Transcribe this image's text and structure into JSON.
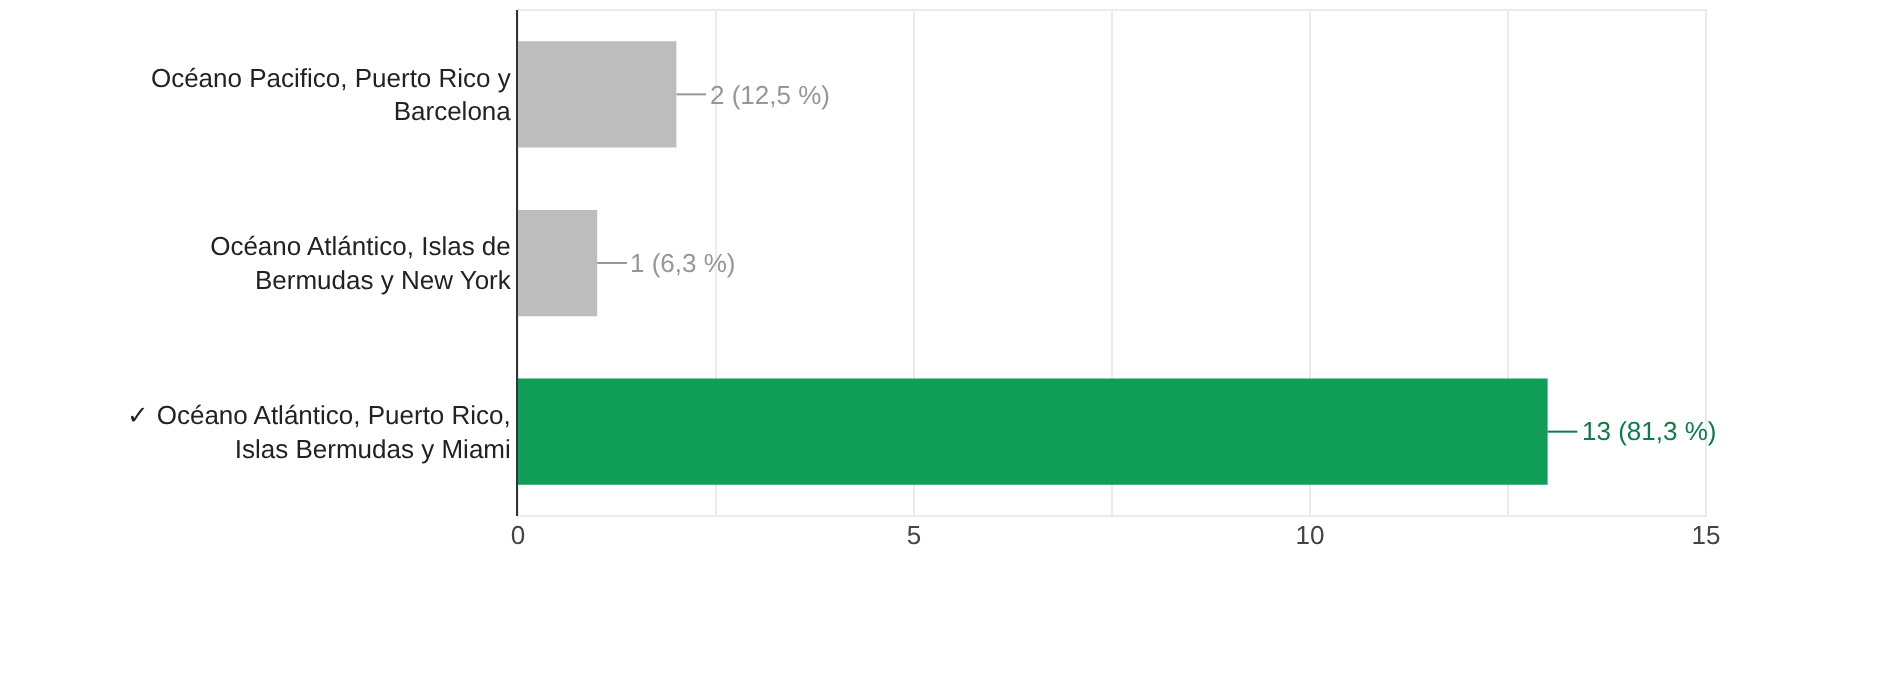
{
  "chart_data": {
    "type": "bar",
    "orientation": "horizontal",
    "categories": [
      "Océano Pacifico, Puerto Rico y Barcelona",
      "Océano Atlántico, Islas de Bermudas y New York",
      "✓ Océano Atlántico, Puerto Rico, Islas Bermudas y Miami"
    ],
    "values": [
      2,
      1,
      13
    ],
    "colors": [
      "#bdbdbd",
      "#bdbdbd",
      "#0f9d58"
    ],
    "value_labels": [
      "2 (12,5 %)",
      "1 (6,3 %)",
      "13 (81,3 %)"
    ],
    "xlim": [
      0,
      15
    ],
    "xticks": [
      0,
      {
        "value": 2.5,
        "label": null
      },
      5,
      {
        "value": 7.5,
        "label": null
      },
      10,
      {
        "value": 12.5,
        "label": null
      },
      15
    ],
    "grid": "x"
  }
}
